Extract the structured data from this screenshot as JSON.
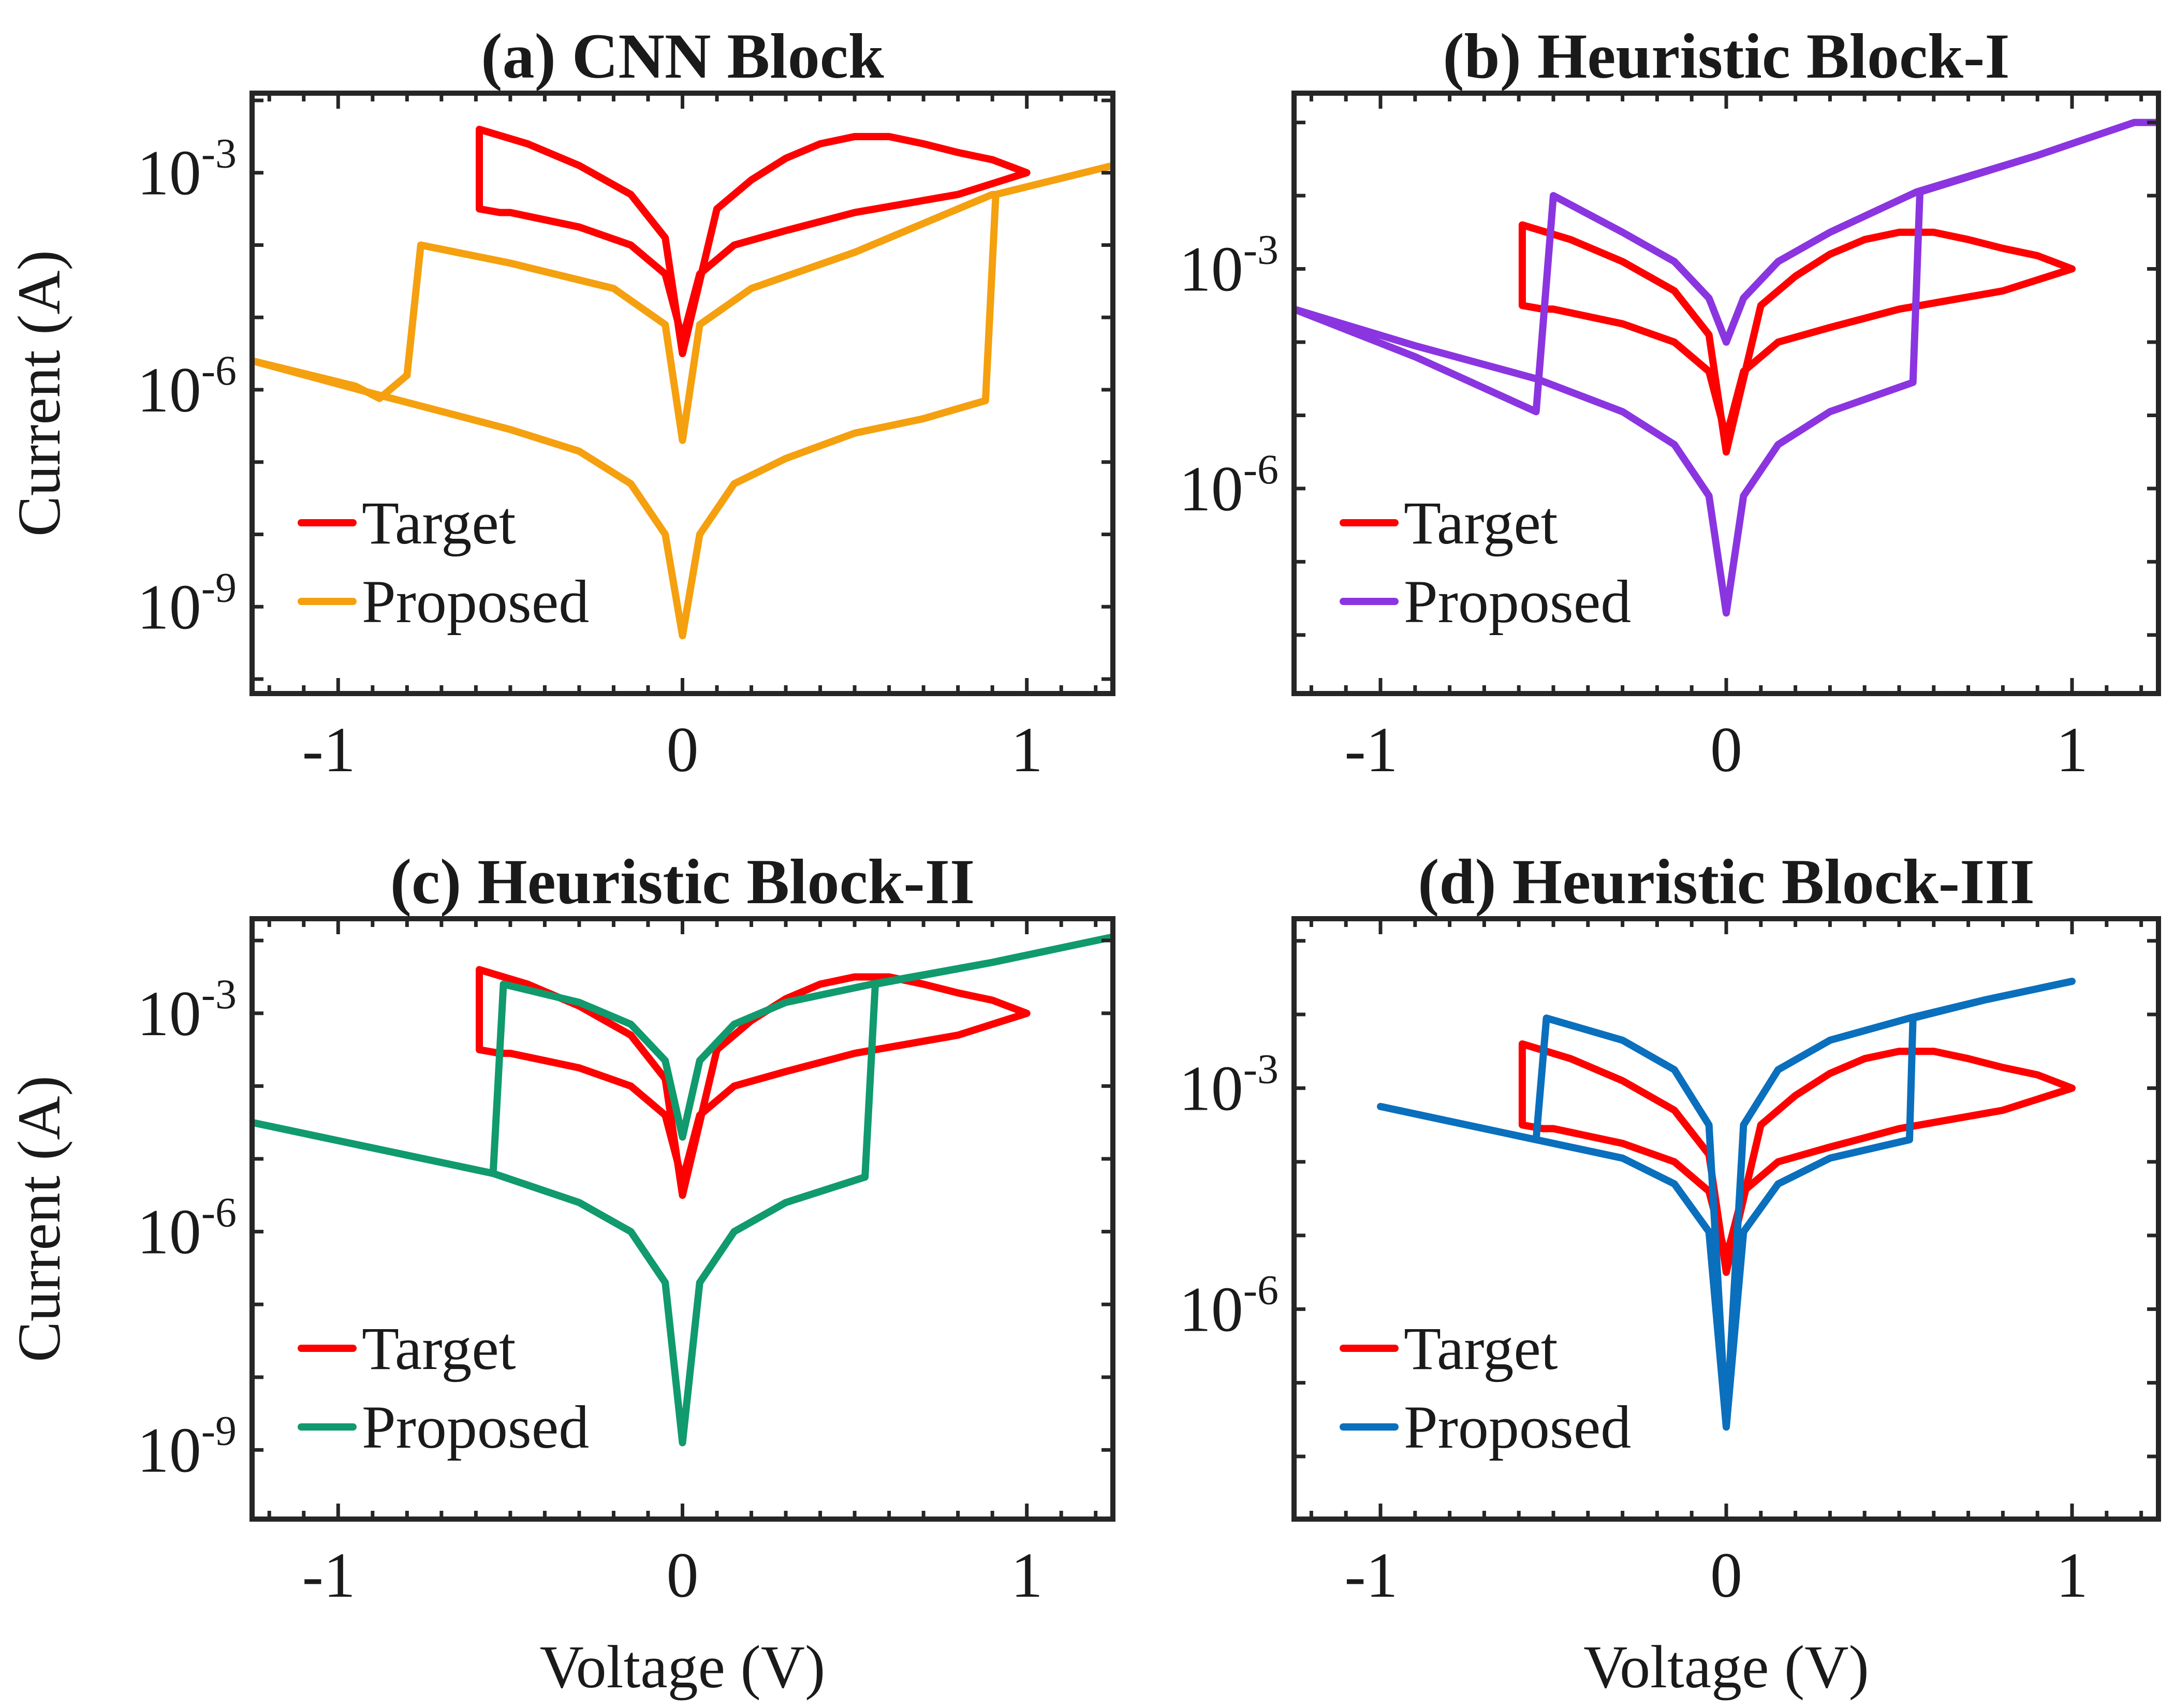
{
  "chart_data": [
    {
      "type": "line",
      "title": "(a) CNN Block",
      "xlabel": "",
      "ylabel": "Current (A)",
      "xlim": [
        -1.25,
        1.25
      ],
      "ylim_log10": [
        -10.2,
        -1.9
      ],
      "xticks": [
        "-1",
        "0",
        "1"
      ],
      "yticks": [
        {
          "base": "10",
          "exp": "-3"
        },
        {
          "base": "10",
          "exp": "-6"
        },
        {
          "base": "10",
          "exp": "-9"
        }
      ],
      "legend": {
        "placement": "bottom-left",
        "entries": [
          "Target",
          "Proposed"
        ]
      },
      "series": [
        {
          "name": "Target",
          "color": "#ff0000",
          "x": [
            0.0,
            0.1,
            0.2,
            0.3,
            0.4,
            0.5,
            0.6,
            0.7,
            0.8,
            0.9,
            1.0,
            0.8,
            0.5,
            0.3,
            0.15,
            0.05,
            0.0,
            -0.05,
            -0.15,
            -0.3,
            -0.5,
            -0.53,
            -0.59,
            -0.59,
            -0.45,
            -0.3,
            -0.15,
            -0.05,
            0.0
          ],
          "y": [
            -5.5,
            -3.5,
            -3.1,
            -2.8,
            -2.6,
            -2.5,
            -2.5,
            -2.6,
            -2.72,
            -2.82,
            -3.0,
            -3.3,
            -3.55,
            -3.8,
            -4.0,
            -4.4,
            -5.3,
            -4.4,
            -4.0,
            -3.75,
            -3.55,
            -3.55,
            -3.5,
            -2.4,
            -2.6,
            -2.9,
            -3.3,
            -3.9,
            -5.5
          ]
        },
        {
          "name": "Proposed",
          "color": "#f5a00f",
          "x": [
            -1.25,
            -0.95,
            -0.88,
            -0.85,
            -0.8,
            -0.76,
            -0.5,
            -0.2,
            -0.05,
            0.0,
            0.05,
            0.2,
            0.5,
            0.9,
            0.91,
            1.25,
            0.91,
            0.88,
            0.7,
            0.5,
            0.3,
            0.15,
            0.05,
            0.0,
            -0.05,
            -0.15,
            -0.3,
            -0.5,
            -0.7,
            -0.9,
            -1.25
          ],
          "y": [
            -5.6,
            -5.95,
            -6.12,
            -6.0,
            -5.8,
            -4.0,
            -4.25,
            -4.6,
            -5.1,
            -6.7,
            -5.1,
            -4.6,
            -4.1,
            -3.3,
            -3.3,
            -2.9,
            -3.3,
            -6.15,
            -6.4,
            -6.6,
            -6.95,
            -7.3,
            -8.0,
            -9.4,
            -8.0,
            -7.3,
            -6.85,
            -6.55,
            -6.3,
            -6.05,
            -5.6
          ]
        }
      ]
    },
    {
      "type": "line",
      "title": "(b) Heuristic Block-I",
      "xlabel": "",
      "ylabel": "",
      "xlim": [
        -1.25,
        1.25
      ],
      "ylim_log10": [
        -8.8,
        -0.6
      ],
      "xticks": [
        "-1",
        "0",
        "1"
      ],
      "yticks": [
        {
          "base": "10",
          "exp": "-3"
        },
        {
          "base": "10",
          "exp": "-6"
        }
      ],
      "legend": {
        "placement": "bottom-left",
        "entries": [
          "Target",
          "Proposed"
        ]
      },
      "series": [
        {
          "name": "Target",
          "color": "#ff0000",
          "x": [
            0.0,
            0.1,
            0.2,
            0.3,
            0.4,
            0.5,
            0.6,
            0.7,
            0.8,
            0.9,
            1.0,
            0.8,
            0.5,
            0.3,
            0.15,
            0.05,
            0.0,
            -0.05,
            -0.15,
            -0.3,
            -0.5,
            -0.53,
            -0.59,
            -0.59,
            -0.45,
            -0.3,
            -0.15,
            -0.05,
            0.0
          ],
          "y": [
            -5.5,
            -3.5,
            -3.1,
            -2.8,
            -2.6,
            -2.5,
            -2.5,
            -2.6,
            -2.72,
            -2.82,
            -3.0,
            -3.3,
            -3.55,
            -3.8,
            -4.0,
            -4.4,
            -5.3,
            -4.4,
            -4.0,
            -3.75,
            -3.55,
            -3.55,
            -3.5,
            -2.4,
            -2.6,
            -2.9,
            -3.3,
            -3.9,
            -5.5
          ]
        },
        {
          "name": "Proposed",
          "color": "#8b35e0",
          "x": [
            -1.25,
            -0.9,
            -0.55,
            -0.5,
            -0.3,
            -0.15,
            -0.05,
            0.0,
            0.05,
            0.15,
            0.3,
            0.55,
            0.9,
            1.18,
            1.25,
            1.18,
            0.9,
            0.56,
            0.54,
            0.3,
            0.15,
            0.05,
            0.0,
            -0.05,
            -0.15,
            -0.3,
            -0.55,
            -0.9,
            -1.25
          ],
          "y": [
            -3.55,
            -4.2,
            -4.95,
            -2.0,
            -2.5,
            -2.9,
            -3.4,
            -4.0,
            -3.4,
            -2.9,
            -2.5,
            -1.95,
            -1.45,
            -1.0,
            -1.0,
            -1.0,
            -1.45,
            -1.95,
            -4.55,
            -4.95,
            -5.4,
            -6.1,
            -7.7,
            -6.1,
            -5.4,
            -4.95,
            -4.5,
            -4.05,
            -3.55
          ]
        }
      ]
    },
    {
      "type": "line",
      "title": "(c) Heuristic Block-II",
      "xlabel": "Voltage (V)",
      "ylabel": "Current (A)",
      "xlim": [
        -1.25,
        1.25
      ],
      "ylim_log10": [
        -9.95,
        -1.7
      ],
      "xticks": [
        "-1",
        "0",
        "1"
      ],
      "yticks": [
        {
          "base": "10",
          "exp": "-3"
        },
        {
          "base": "10",
          "exp": "-6"
        },
        {
          "base": "10",
          "exp": "-9"
        }
      ],
      "legend": {
        "placement": "bottom-left",
        "entries": [
          "Target",
          "Proposed"
        ]
      },
      "series": [
        {
          "name": "Target",
          "color": "#ff0000",
          "x": [
            0.0,
            0.1,
            0.2,
            0.3,
            0.4,
            0.5,
            0.6,
            0.7,
            0.8,
            0.9,
            1.0,
            0.8,
            0.5,
            0.3,
            0.15,
            0.05,
            0.0,
            -0.05,
            -0.15,
            -0.3,
            -0.5,
            -0.53,
            -0.59,
            -0.59,
            -0.45,
            -0.3,
            -0.15,
            -0.05,
            0.0
          ],
          "y": [
            -5.5,
            -3.5,
            -3.1,
            -2.8,
            -2.6,
            -2.5,
            -2.5,
            -2.6,
            -2.72,
            -2.82,
            -3.0,
            -3.3,
            -3.55,
            -3.8,
            -4.0,
            -4.4,
            -5.3,
            -4.4,
            -4.0,
            -3.75,
            -3.55,
            -3.55,
            -3.5,
            -2.4,
            -2.6,
            -2.9,
            -3.3,
            -3.9,
            -5.5
          ]
        },
        {
          "name": "Proposed",
          "color": "#109a6e",
          "x": [
            -1.25,
            -0.9,
            -0.55,
            -0.52,
            -0.3,
            -0.15,
            -0.05,
            0.0,
            0.05,
            0.15,
            0.3,
            0.55,
            0.9,
            1.25,
            0.9,
            0.56,
            0.53,
            0.3,
            0.15,
            0.05,
            0.0,
            -0.05,
            -0.15,
            -0.3,
            -0.55,
            -0.9,
            -1.25
          ],
          "y": [
            -4.5,
            -4.85,
            -5.2,
            -2.6,
            -2.85,
            -3.15,
            -3.65,
            -4.7,
            -3.65,
            -3.15,
            -2.85,
            -2.6,
            -2.3,
            -1.95,
            -2.3,
            -2.6,
            -5.25,
            -5.6,
            -6.0,
            -6.7,
            -8.9,
            -6.7,
            -6.0,
            -5.6,
            -5.2,
            -4.85,
            -4.5
          ]
        }
      ]
    },
    {
      "type": "line",
      "title": "(d) Heuristic Block-III",
      "xlabel": "Voltage (V)",
      "ylabel": "",
      "xlim": [
        -1.25,
        1.25
      ],
      "ylim_log10": [
        -8.85,
        -0.7
      ],
      "xticks": [
        "-1",
        "0",
        "1"
      ],
      "yticks": [
        {
          "base": "10",
          "exp": "-3"
        },
        {
          "base": "10",
          "exp": "-6"
        }
      ],
      "legend": {
        "placement": "bottom-left",
        "entries": [
          "Target",
          "Proposed"
        ]
      },
      "series": [
        {
          "name": "Target",
          "color": "#ff0000",
          "x": [
            0.0,
            0.1,
            0.2,
            0.3,
            0.4,
            0.5,
            0.6,
            0.7,
            0.8,
            0.9,
            1.0,
            0.8,
            0.5,
            0.3,
            0.15,
            0.05,
            0.0,
            -0.05,
            -0.15,
            -0.3,
            -0.5,
            -0.53,
            -0.59,
            -0.59,
            -0.45,
            -0.3,
            -0.15,
            -0.05,
            0.0
          ],
          "y": [
            -5.5,
            -3.5,
            -3.1,
            -2.8,
            -2.6,
            -2.5,
            -2.5,
            -2.6,
            -2.72,
            -2.82,
            -3.0,
            -3.3,
            -3.55,
            -3.8,
            -4.0,
            -4.4,
            -5.3,
            -4.4,
            -4.0,
            -3.75,
            -3.55,
            -3.55,
            -3.5,
            -2.4,
            -2.6,
            -2.9,
            -3.3,
            -3.9,
            -5.5
          ]
        },
        {
          "name": "Proposed",
          "color": "#0a6fbd",
          "x": [
            -1.0,
            -0.8,
            -0.55,
            -0.52,
            -0.3,
            -0.15,
            -0.05,
            0.0,
            0.05,
            0.15,
            0.3,
            0.53,
            0.75,
            1.0,
            0.75,
            0.54,
            0.53,
            0.3,
            0.15,
            0.05,
            0.0,
            -0.05,
            -0.15,
            -0.3,
            -0.55,
            -0.8,
            -1.0
          ],
          "y": [
            -3.25,
            -3.45,
            -3.7,
            -2.05,
            -2.35,
            -2.75,
            -3.5,
            -7.6,
            -3.5,
            -2.75,
            -2.35,
            -2.05,
            -1.8,
            -1.55,
            -1.8,
            -2.05,
            -3.7,
            -3.95,
            -4.3,
            -4.95,
            -7.6,
            -4.95,
            -4.3,
            -3.95,
            -3.7,
            -3.45,
            -3.25
          ]
        }
      ]
    }
  ]
}
